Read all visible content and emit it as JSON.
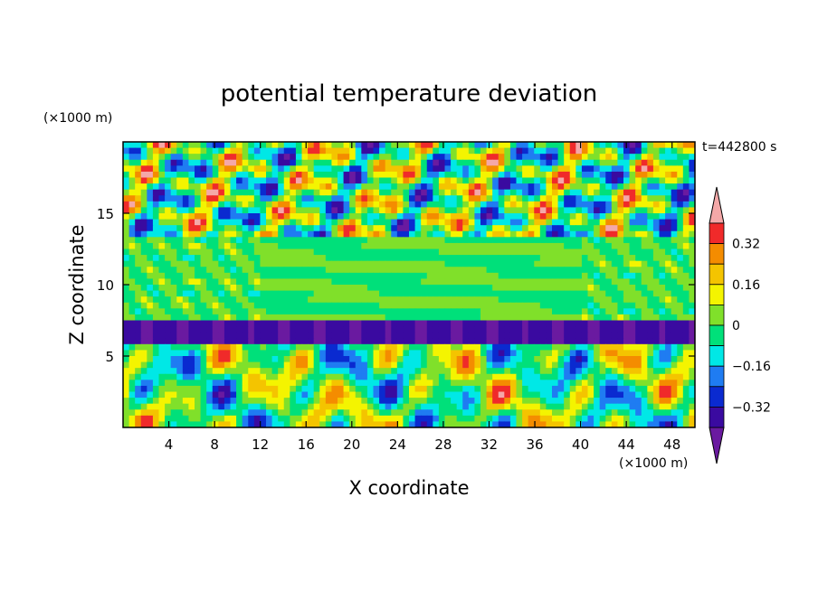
{
  "chart_data": {
    "type": "heatmap",
    "title": "potential temperature deviation",
    "time_label": "t=442800 s",
    "xlabel": "X coordinate",
    "ylabel": "Z coordinate",
    "x_unit": "(×1000 m)",
    "y_unit": "(×1000 m)",
    "xlim": [
      0,
      50
    ],
    "ylim": [
      0,
      20
    ],
    "x_ticks": [
      4,
      8,
      12,
      16,
      20,
      24,
      28,
      32,
      36,
      40,
      44,
      48
    ],
    "y_ticks": [
      5,
      10,
      15
    ],
    "colorbar": {
      "levels": [
        -0.4,
        -0.32,
        -0.24,
        -0.16,
        -0.08,
        0,
        0.08,
        0.16,
        0.24,
        0.32,
        0.4
      ],
      "tick_labels": [
        "0.32",
        "0.16",
        "0",
        "−0.16",
        "−0.32"
      ],
      "tick_values": [
        0.32,
        0.16,
        0,
        -0.16,
        -0.32
      ],
      "colors": [
        "#6a1aa0",
        "#3a0aa0",
        "#0a2ad0",
        "#1f7cf2",
        "#00e8e6",
        "#00e07a",
        "#80e02a",
        "#f4f400",
        "#f4c400",
        "#f48c00",
        "#f02a2a",
        "#f4a8a8"
      ],
      "extend": "both"
    }
  }
}
